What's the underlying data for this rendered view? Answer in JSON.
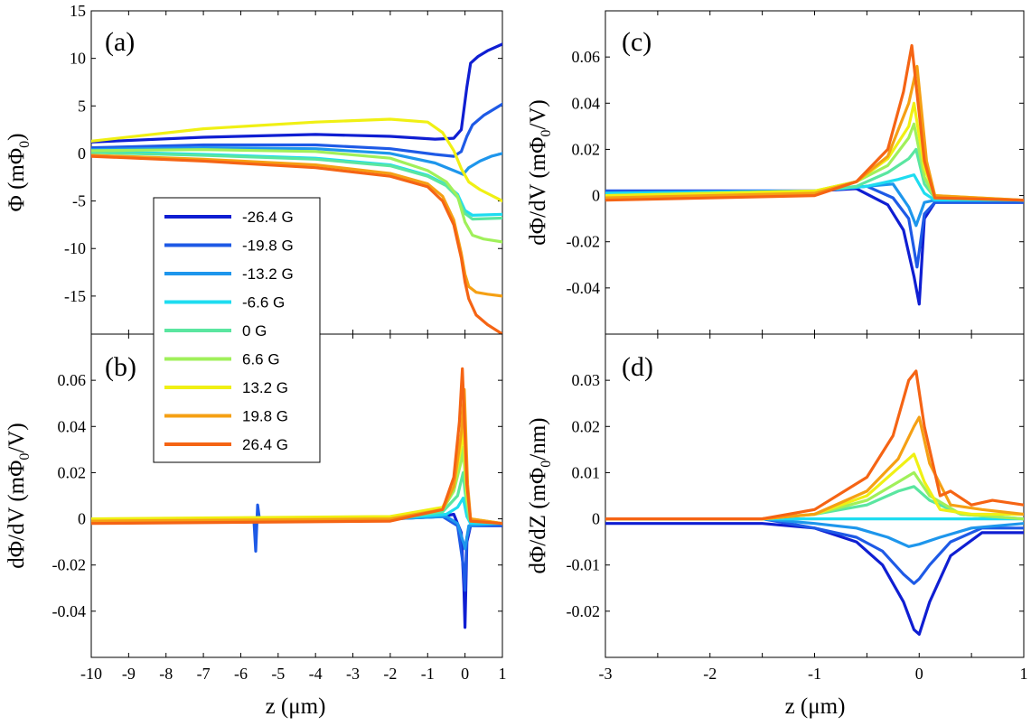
{
  "figure": {
    "x_axis_label": "z (μm)",
    "legend": {
      "entries": [
        "-26.4 G",
        "-19.8 G",
        "-13.2 G",
        "-6.6 G",
        "0 G",
        "6.6 G",
        "13.2 G",
        "19.8 G",
        "26.4 G"
      ],
      "colors": [
        "#0f1ed2",
        "#1e5ae6",
        "#1e96ec",
        "#1edcf0",
        "#5ae6a0",
        "#a0f05a",
        "#f0f014",
        "#f5a014",
        "#f56414"
      ]
    }
  },
  "chart_data": [
    {
      "id": "a",
      "panel_label": "(a)",
      "type": "line",
      "ylabel": "Φ (mΦ",
      "ylabel_sub": "0",
      "ylabel_end": ")",
      "xlim": [
        -10,
        1
      ],
      "ylim": [
        -19,
        15
      ],
      "xticks": [],
      "xtick_labels": [],
      "yticks": [
        15,
        10,
        5,
        0,
        -5,
        -10,
        -15
      ],
      "ytick_labels": [
        "15",
        "10",
        "5",
        "0",
        "-5",
        "-10",
        "-15"
      ],
      "series": [
        {
          "name": "-26.4 G",
          "x": [
            -10,
            -7,
            -4,
            -2,
            -0.8,
            -0.3,
            -0.1,
            0.05,
            0.15,
            0.35,
            0.6,
            1
          ],
          "y": [
            1.2,
            1.7,
            2,
            1.8,
            1.5,
            1.6,
            2.5,
            7,
            9.5,
            10.2,
            10.8,
            11.5
          ]
        },
        {
          "name": "-19.8 G",
          "x": [
            -10,
            -7,
            -4,
            -2,
            -0.8,
            -0.3,
            -0.1,
            0.05,
            0.2,
            0.5,
            1
          ],
          "y": [
            0.6,
            0.9,
            0.9,
            0.5,
            -0.1,
            -0.3,
            0.2,
            1.8,
            3,
            4,
            5.2
          ]
        },
        {
          "name": "-13.2 G",
          "x": [
            -10,
            -7,
            -4,
            -2,
            -0.8,
            -0.3,
            -0.05,
            0.1,
            0.4,
            0.7,
            1
          ],
          "y": [
            0.4,
            0.6,
            0.5,
            0,
            -1,
            -1.8,
            -2.2,
            -1.5,
            -0.8,
            -0.3,
            0
          ]
        },
        {
          "name": "-6.6 G",
          "x": [
            -10,
            -7,
            -4,
            -2,
            -1,
            -0.5,
            -0.2,
            0,
            0.2,
            1
          ],
          "y": [
            0.2,
            -0.1,
            -0.5,
            -1.2,
            -2.3,
            -3.3,
            -4.3,
            -6,
            -6.5,
            -6.4
          ]
        },
        {
          "name": "0 G",
          "x": [
            -10,
            -7,
            -4,
            -2,
            -1,
            -0.5,
            -0.2,
            0,
            0.2,
            1
          ],
          "y": [
            0.1,
            -0.2,
            -0.6,
            -1.3,
            -2.4,
            -3.4,
            -4.6,
            -6.3,
            -6.9,
            -6.8
          ]
        },
        {
          "name": "6.6 G",
          "x": [
            -10,
            -7,
            -4,
            -2,
            -1,
            -0.5,
            -0.2,
            0,
            0.2,
            0.5,
            1
          ],
          "y": [
            0.3,
            0.4,
            0.2,
            -0.5,
            -1.8,
            -3,
            -4.5,
            -7.2,
            -8.6,
            -9,
            -9.3
          ]
        },
        {
          "name": "13.2 G",
          "x": [
            -10,
            -7,
            -4,
            -2,
            -1,
            -0.6,
            -0.3,
            -0.1,
            0.1,
            0.4,
            1
          ],
          "y": [
            1.3,
            2.6,
            3.3,
            3.6,
            3.3,
            2.2,
            0.3,
            -1.6,
            -3,
            -3.8,
            -5
          ]
        },
        {
          "name": "19.8 G",
          "x": [
            -10,
            -7,
            -4,
            -2,
            -1,
            -0.6,
            -0.3,
            -0.1,
            0,
            0.1,
            0.3,
            0.6,
            1
          ],
          "y": [
            -0.2,
            -0.6,
            -1.2,
            -2.1,
            -3.2,
            -4.5,
            -7,
            -10.5,
            -12.7,
            -14,
            -14.6,
            -14.8,
            -15
          ]
        },
        {
          "name": "26.4 G",
          "x": [
            -10,
            -7,
            -4,
            -2,
            -1,
            -0.6,
            -0.3,
            -0.1,
            0,
            0.1,
            0.3,
            0.6,
            1
          ],
          "y": [
            -0.3,
            -0.8,
            -1.5,
            -2.4,
            -3.5,
            -5,
            -7.5,
            -11,
            -13.5,
            -15.3,
            -17,
            -18,
            -19
          ]
        }
      ]
    },
    {
      "id": "b",
      "panel_label": "(b)",
      "type": "line",
      "ylabel": "dΦ/dV (mΦ",
      "ylabel_sub": "0",
      "ylabel_end": "/V)",
      "xlim": [
        -10,
        1
      ],
      "ylim": [
        -0.06,
        0.08
      ],
      "xticks": [
        -10,
        -9,
        -8,
        -7,
        -6,
        -5,
        -4,
        -3,
        -2,
        -1,
        0,
        1
      ],
      "xtick_labels": [
        "-10",
        "-9",
        "-8",
        "-7",
        "-6",
        "-5",
        "-4",
        "-3",
        "-2",
        "-1",
        "0",
        "1"
      ],
      "yticks": [
        0.06,
        0.04,
        0.02,
        0,
        -0.02,
        -0.04
      ],
      "ytick_labels": [
        "0.06",
        "0.04",
        "0.02",
        "0",
        "-0.02",
        "-0.04"
      ],
      "series": [
        {
          "name": "-26.4 G",
          "x": [
            -10,
            -2,
            -0.6,
            -0.3,
            -0.1,
            -0.03,
            0,
            0.05,
            0.15,
            1
          ],
          "y": [
            0,
            0,
            0.001,
            0.002,
            -0.006,
            -0.03,
            -0.047,
            -0.01,
            -0.003,
            -0.003
          ]
        },
        {
          "name": "-19.8 G",
          "x": [
            -10,
            -5.65,
            -5.6,
            -5.55,
            -5.5,
            -2,
            -0.6,
            -0.2,
            -0.05,
            0,
            0.05,
            0.15,
            1
          ],
          "y": [
            0,
            0,
            -0.014,
            0.006,
            0,
            0,
            0.001,
            -0.003,
            -0.02,
            -0.031,
            -0.008,
            -0.003,
            -0.003
          ]
        },
        {
          "name": "-13.2 G",
          "x": [
            -10,
            -2,
            -0.5,
            -0.2,
            -0.05,
            0,
            0.1,
            1
          ],
          "y": [
            0,
            0,
            0.001,
            -0.002,
            -0.01,
            -0.013,
            -0.003,
            -0.002
          ]
        },
        {
          "name": "-6.6 G",
          "x": [
            -10,
            -2,
            -0.5,
            -0.2,
            -0.05,
            0.05,
            0.15,
            1
          ],
          "y": [
            0,
            0,
            0.002,
            0.005,
            0.009,
            0.001,
            -0.002,
            -0.002
          ]
        },
        {
          "name": "0 G",
          "x": [
            -10,
            -2,
            -0.6,
            -0.2,
            -0.05,
            0,
            0.1,
            1
          ],
          "y": [
            0,
            0,
            0.003,
            0.01,
            0.02,
            0.012,
            0,
            -0.002
          ]
        },
        {
          "name": "6.6 G",
          "x": [
            -10,
            -2,
            -0.6,
            -0.3,
            -0.1,
            -0.05,
            0.05,
            0.15,
            1
          ],
          "y": [
            0,
            0,
            0.004,
            0.012,
            0.025,
            0.031,
            0.008,
            -0.001,
            -0.002
          ]
        },
        {
          "name": "13.2 G",
          "x": [
            -10,
            -2,
            -0.6,
            -0.3,
            -0.1,
            -0.05,
            0.05,
            0.15,
            1
          ],
          "y": [
            0,
            0.001,
            0.005,
            0.014,
            0.032,
            0.04,
            0.012,
            0,
            -0.002
          ]
        },
        {
          "name": "19.8 G",
          "x": [
            -10,
            -2,
            -0.6,
            -0.3,
            -0.1,
            -0.02,
            0.07,
            0.15,
            1
          ],
          "y": [
            -0.001,
            0,
            0.004,
            0.014,
            0.037,
            0.056,
            0.015,
            0,
            -0.002
          ]
        },
        {
          "name": "26.4 G",
          "x": [
            -10,
            -2,
            -0.6,
            -0.3,
            -0.15,
            -0.07,
            0.05,
            0.15,
            1
          ],
          "y": [
            -0.002,
            -0.001,
            0.004,
            0.018,
            0.042,
            0.065,
            0.015,
            -0.001,
            -0.002
          ]
        }
      ]
    },
    {
      "id": "c",
      "panel_label": "(c)",
      "type": "line",
      "ylabel": "dΦ/dV (mΦ",
      "ylabel_sub": "0",
      "ylabel_end": "/V)",
      "xlim": [
        -3,
        1
      ],
      "ylim": [
        -0.06,
        0.08
      ],
      "xticks": [],
      "xtick_labels": [],
      "yticks": [
        0.06,
        0.04,
        0.02,
        0,
        -0.02,
        -0.04
      ],
      "ytick_labels": [
        "0.06",
        "0.04",
        "0.02",
        "0",
        "-0.02",
        "-0.04"
      ],
      "series": [
        {
          "name": "-26.4 G",
          "x": [
            -3,
            -1,
            -0.6,
            -0.3,
            -0.15,
            -0.05,
            0,
            0.05,
            0.15,
            1
          ],
          "y": [
            0.002,
            0.002,
            0.003,
            -0.004,
            -0.015,
            -0.035,
            -0.047,
            -0.01,
            -0.003,
            -0.003
          ]
        },
        {
          "name": "-19.8 G",
          "x": [
            -3,
            -1,
            -0.5,
            -0.25,
            -0.1,
            -0.02,
            0.05,
            0.15,
            1
          ],
          "y": [
            0.002,
            0.002,
            0.004,
            -0.001,
            -0.01,
            -0.031,
            -0.008,
            -0.003,
            -0.003
          ]
        },
        {
          "name": "-13.2 G",
          "x": [
            -3,
            -1,
            -0.5,
            -0.25,
            -0.1,
            -0.03,
            0.05,
            0.15,
            1
          ],
          "y": [
            0.001,
            0.002,
            0.004,
            0.005,
            -0.005,
            -0.013,
            -0.003,
            -0.002,
            -0.002
          ]
        },
        {
          "name": "-6.6 G",
          "x": [
            -3,
            -1,
            -0.5,
            -0.2,
            -0.05,
            0.05,
            0.15,
            1
          ],
          "y": [
            0.001,
            0.002,
            0.004,
            0.007,
            0.009,
            0.001,
            -0.002,
            -0.002
          ]
        },
        {
          "name": "0 G",
          "x": [
            -3,
            -1,
            -0.6,
            -0.3,
            -0.1,
            -0.03,
            0.05,
            0.15,
            1
          ],
          "y": [
            0,
            0.002,
            0.004,
            0.01,
            0.016,
            0.02,
            0.005,
            -0.001,
            -0.002
          ]
        },
        {
          "name": "6.6 G",
          "x": [
            -3,
            -1,
            -0.6,
            -0.3,
            -0.1,
            -0.05,
            0.05,
            0.15,
            1
          ],
          "y": [
            0,
            0.002,
            0.006,
            0.013,
            0.025,
            0.031,
            0.008,
            -0.001,
            -0.002
          ]
        },
        {
          "name": "13.2 G",
          "x": [
            -3,
            -1,
            -0.6,
            -0.3,
            -0.1,
            -0.05,
            0.05,
            0.15,
            1
          ],
          "y": [
            0,
            0.002,
            0.006,
            0.016,
            0.03,
            0.04,
            0.012,
            0,
            -0.002
          ]
        },
        {
          "name": "19.8 G",
          "x": [
            -3,
            -1,
            -0.6,
            -0.3,
            -0.1,
            -0.02,
            0.07,
            0.15,
            1
          ],
          "y": [
            -0.001,
            0.001,
            0.006,
            0.017,
            0.04,
            0.056,
            0.015,
            0,
            -0.002
          ]
        },
        {
          "name": "26.4 G",
          "x": [
            -3,
            -1,
            -0.6,
            -0.3,
            -0.15,
            -0.07,
            0.05,
            0.15,
            1
          ],
          "y": [
            -0.002,
            0,
            0.006,
            0.02,
            0.045,
            0.065,
            0.015,
            -0.001,
            -0.002
          ]
        }
      ]
    },
    {
      "id": "d",
      "panel_label": "(d)",
      "type": "line",
      "ylabel": "dΦ/dZ (mΦ",
      "ylabel_sub": "0",
      "ylabel_end": "/nm)",
      "xlim": [
        -3,
        1
      ],
      "ylim": [
        -0.03,
        0.04
      ],
      "xticks": [
        -3,
        -2,
        -1,
        0,
        1
      ],
      "xtick_labels": [
        "-3",
        "-2",
        "-1",
        "0",
        "1"
      ],
      "yticks": [
        0.03,
        0.02,
        0.01,
        0,
        -0.01,
        -0.02
      ],
      "ytick_labels": [
        "0.03",
        "0.02",
        "0.01",
        "0",
        "-0.01",
        "-0.02"
      ],
      "series": [
        {
          "name": "-26.4 G",
          "x": [
            -3,
            -1.5,
            -1,
            -0.6,
            -0.35,
            -0.15,
            -0.05,
            0,
            0.1,
            0.3,
            0.6,
            1
          ],
          "y": [
            -0.001,
            -0.001,
            -0.002,
            -0.005,
            -0.01,
            -0.018,
            -0.024,
            -0.025,
            -0.018,
            -0.008,
            -0.003,
            -0.003
          ]
        },
        {
          "name": "-19.8 G",
          "x": [
            -3,
            -1.5,
            -1,
            -0.6,
            -0.35,
            -0.15,
            -0.05,
            0,
            0.1,
            0.3,
            0.6,
            1
          ],
          "y": [
            0,
            0,
            -0.002,
            -0.004,
            -0.007,
            -0.012,
            -0.014,
            -0.013,
            -0.01,
            -0.005,
            -0.002,
            -0.002
          ]
        },
        {
          "name": "-13.2 G",
          "x": [
            -3,
            -1.5,
            -1,
            -0.6,
            -0.3,
            -0.1,
            0,
            0.2,
            0.5,
            1
          ],
          "y": [
            0,
            0,
            -0.001,
            -0.002,
            -0.004,
            -0.006,
            -0.0055,
            -0.004,
            -0.002,
            -0.001
          ]
        },
        {
          "name": "-6.6 G",
          "x": [
            -3,
            -1,
            -0.5,
            -0.2,
            0,
            0.3,
            1
          ],
          "y": [
            0,
            0,
            0,
            0,
            0,
            0,
            0
          ]
        },
        {
          "name": "0 G",
          "x": [
            -3,
            -1.5,
            -1,
            -0.5,
            -0.2,
            -0.05,
            0.1,
            0.4,
            1
          ],
          "y": [
            0,
            0,
            0.001,
            0.003,
            0.006,
            0.007,
            0.004,
            0.001,
            0
          ]
        },
        {
          "name": "6.6 G",
          "x": [
            -3,
            -1.5,
            -1,
            -0.5,
            -0.2,
            -0.05,
            0.1,
            0.4,
            1
          ],
          "y": [
            0,
            0,
            0.001,
            0.004,
            0.008,
            0.01,
            0.005,
            0.001,
            0
          ]
        },
        {
          "name": "13.2 G",
          "x": [
            -3,
            -1.5,
            -1,
            -0.5,
            -0.2,
            -0.05,
            0.05,
            0.2,
            0.5,
            1
          ],
          "y": [
            0,
            0,
            0.001,
            0.005,
            0.011,
            0.014,
            0.008,
            0.002,
            0.001,
            0.001
          ]
        },
        {
          "name": "19.8 G",
          "x": [
            -3,
            -1.5,
            -1,
            -0.5,
            -0.2,
            -0.05,
            0,
            0.1,
            0.3,
            0.6,
            1
          ],
          "y": [
            0,
            0,
            0.001,
            0.006,
            0.013,
            0.02,
            0.022,
            0.012,
            0.003,
            0.002,
            0.001
          ]
        },
        {
          "name": "26.4 G",
          "x": [
            -3,
            -1.5,
            -1,
            -0.5,
            -0.25,
            -0.1,
            -0.03,
            0.05,
            0.2,
            0.3,
            0.5,
            0.7,
            1
          ],
          "y": [
            0,
            0,
            0.002,
            0.009,
            0.018,
            0.03,
            0.032,
            0.02,
            0.005,
            0.006,
            0.003,
            0.004,
            0.003
          ]
        }
      ]
    }
  ]
}
